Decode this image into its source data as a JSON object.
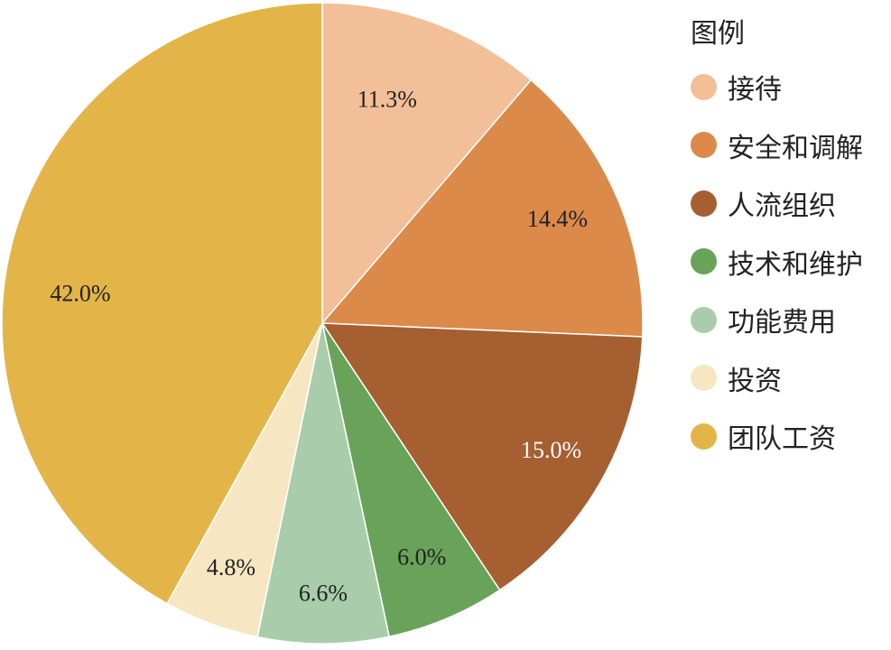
{
  "chart_data": {
    "type": "pie",
    "legend_title": "图例",
    "legend_position": "right",
    "start": "top, clockwise",
    "slices": [
      {
        "label": "接待",
        "value": 11.3,
        "display": "11.3%",
        "color": "#F2BF98",
        "label_color": "#222222"
      },
      {
        "label": "安全和调解",
        "value": 14.4,
        "display": "14.4%",
        "color": "#DB8A4A",
        "label_color": "#222222"
      },
      {
        "label": "人流组织",
        "value": 15.0,
        "display": "15.0%",
        "color": "#A65F30",
        "label_color": "#FFFFFF"
      },
      {
        "label": "技术和维护",
        "value": 6.0,
        "display": "6.0%",
        "color": "#69A35A",
        "label_color": "#222222"
      },
      {
        "label": "功能费用",
        "value": 6.6,
        "display": "6.6%",
        "color": "#A9CDAA",
        "label_color": "#222222"
      },
      {
        "label": "投资",
        "value": 4.8,
        "display": "4.8%",
        "color": "#F7E6C2",
        "label_color": "#222222"
      },
      {
        "label": "团队工资",
        "value": 42.0,
        "display": "42.0%",
        "color": "#E3B548",
        "label_color": "#222222"
      }
    ]
  }
}
